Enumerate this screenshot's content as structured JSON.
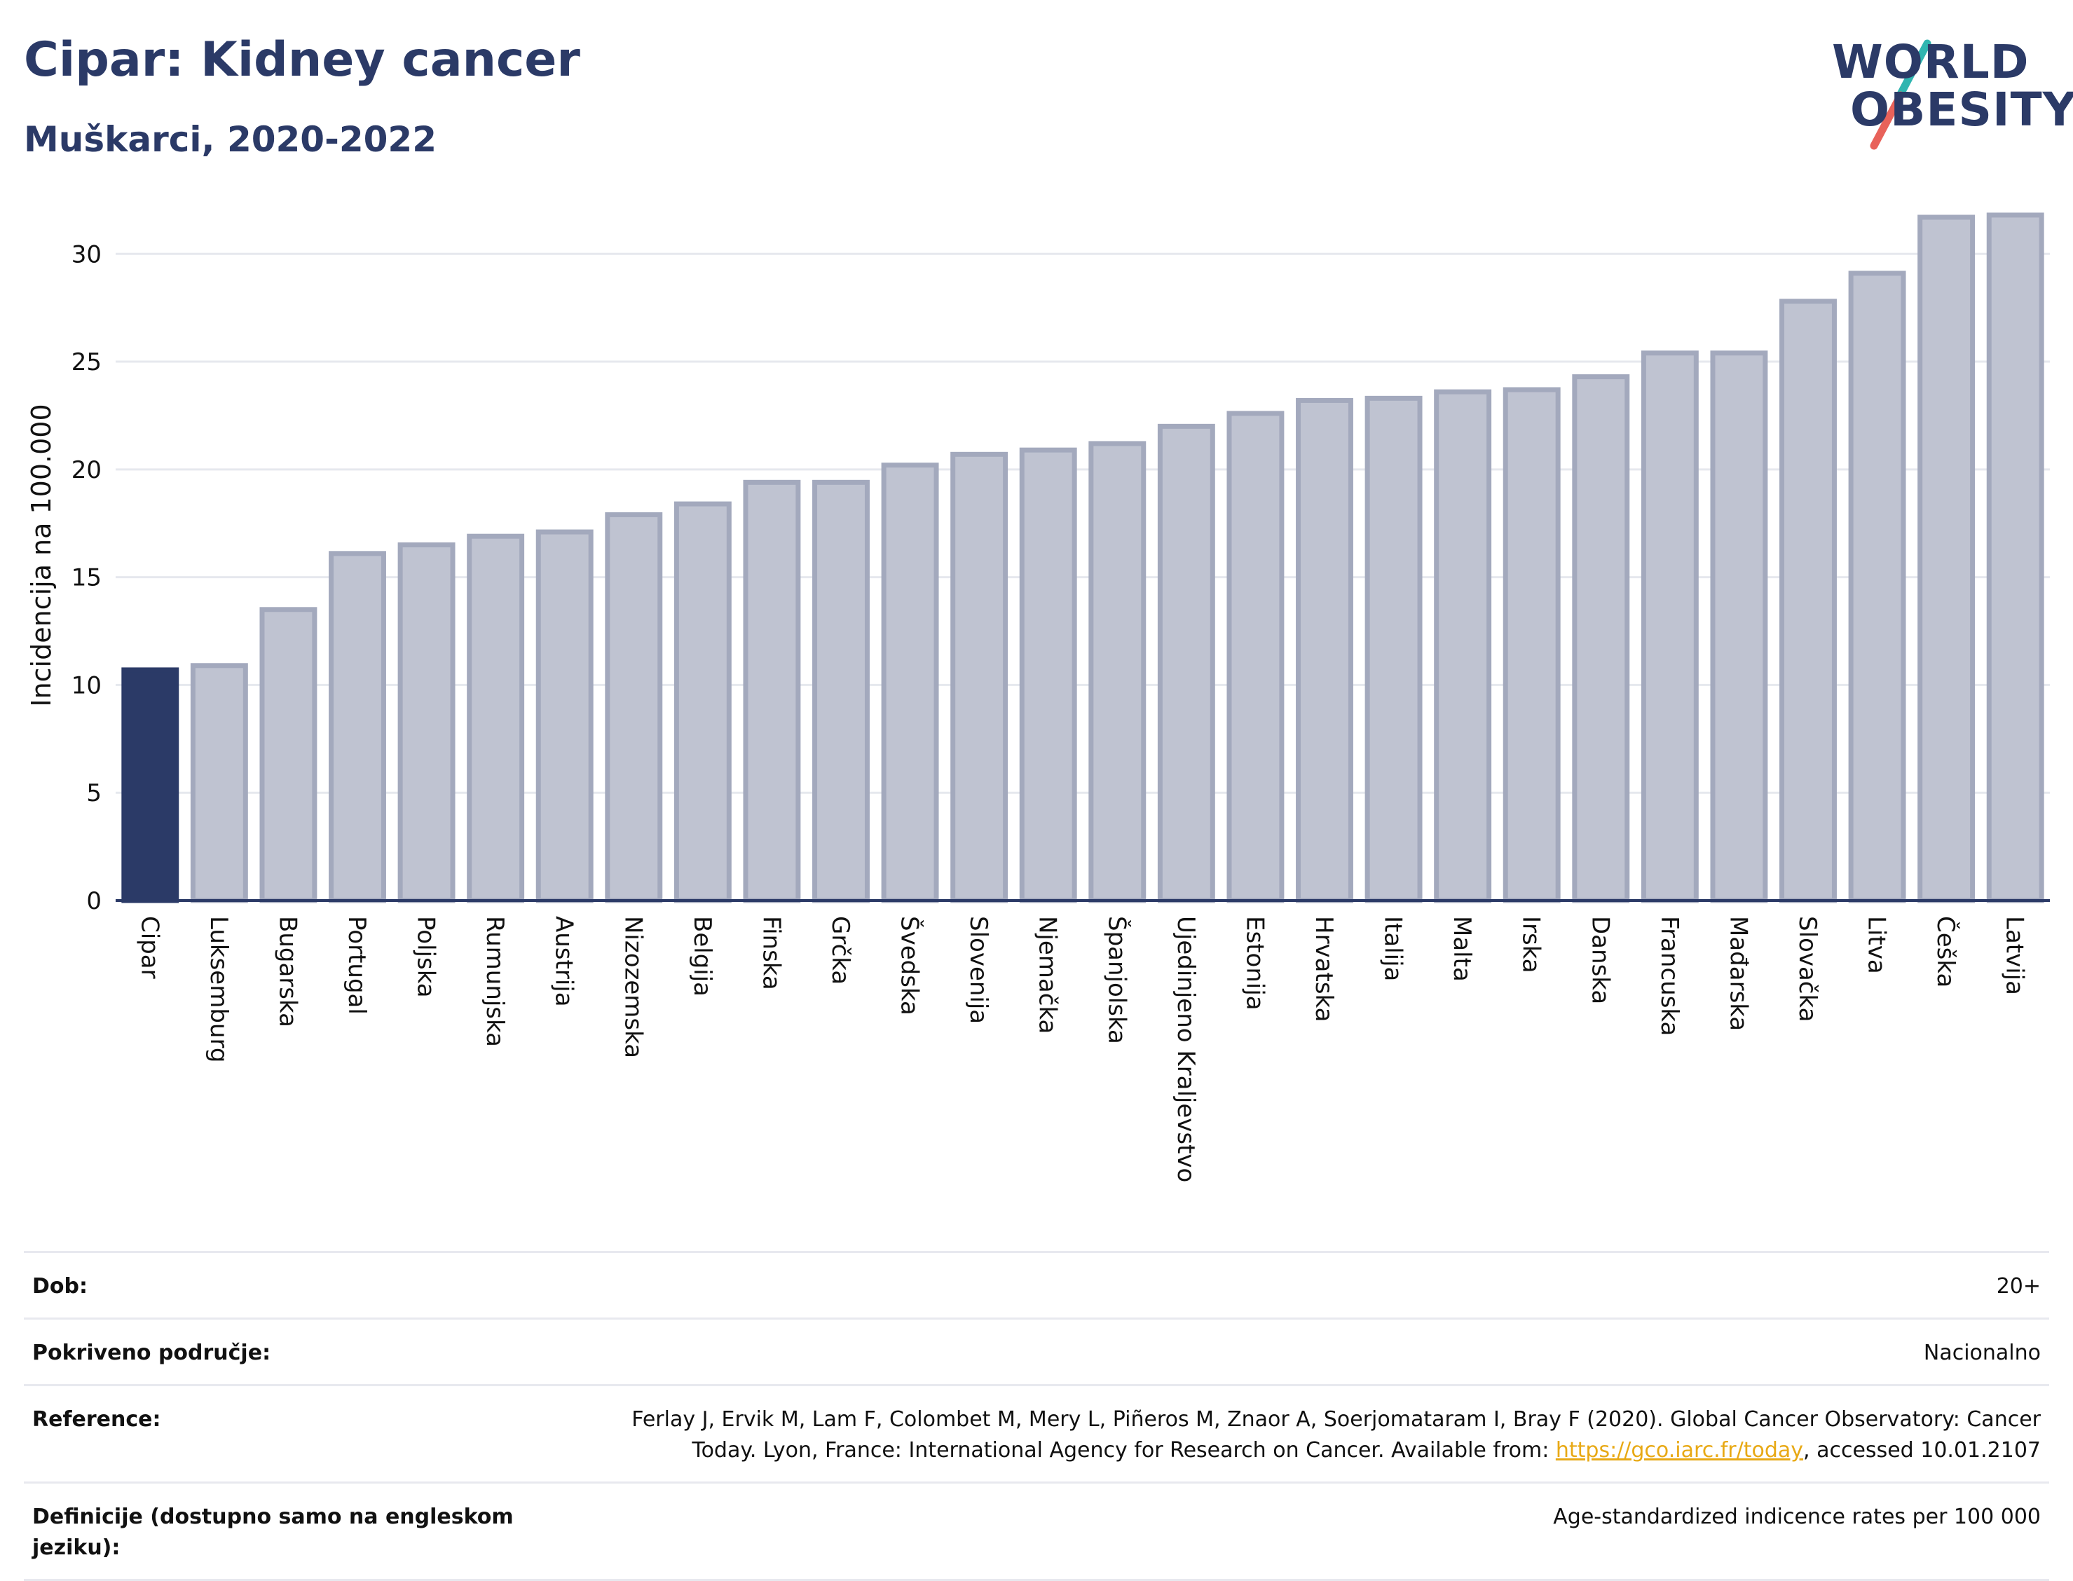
{
  "header": {
    "title": "Cipar: Kidney cancer",
    "subtitle": "Muškarci, 2020-2022"
  },
  "logo": {
    "line1": "WORLD",
    "line2": "OBESITY",
    "slash_colors": [
      "#2fb5b0",
      "#e8625a"
    ]
  },
  "colors": {
    "highlight_bar": "#2b3a67",
    "other_bar": "#bfc3d1",
    "bar_border": "#a3a9bd",
    "grid": "#e6e8ee",
    "axis": "#2b3a67"
  },
  "chart_data": {
    "type": "bar",
    "title": "",
    "xlabel": "",
    "ylabel": "Incidencija na 100.000",
    "ylim": [
      0,
      33
    ],
    "yticks": [
      0,
      5,
      10,
      15,
      20,
      25,
      30
    ],
    "grid": true,
    "highlight": "Cipar",
    "categories": [
      "Cipar",
      "Luksemburg",
      "Bugarska",
      "Portugal",
      "Poljska",
      "Rumunjska",
      "Austrija",
      "Nizozemska",
      "Belgija",
      "Finska",
      "Grčka",
      "Švedska",
      "Slovenija",
      "Njemačka",
      "Španjolska",
      "Ujedinjeno Kraljevstvo",
      "Estonija",
      "Hrvatska",
      "Italija",
      "Malta",
      "Irska",
      "Danska",
      "Francuska",
      "Mađarska",
      "Slovačka",
      "Litva",
      "Češka",
      "Latvija"
    ],
    "values": [
      10.7,
      10.9,
      13.5,
      16.1,
      16.5,
      16.9,
      17.1,
      17.9,
      18.4,
      19.4,
      19.4,
      20.2,
      20.7,
      20.9,
      21.2,
      22.0,
      22.6,
      23.2,
      23.3,
      23.6,
      23.7,
      24.3,
      25.4,
      25.4,
      27.8,
      29.1,
      31.7,
      31.8
    ]
  },
  "info": {
    "rows": [
      {
        "label": "Dob:",
        "value": "20+"
      },
      {
        "label": "Pokriveno područje:",
        "value": "Nacionalno"
      },
      {
        "label": "Reference:",
        "value_pre": "Ferlay J, Ervik M, Lam F, Colombet M, Mery L, Piñeros M, Znaor A, Soerjomataram I, Bray F (2020). Global Cancer Observatory: Cancer Today. Lyon, France: International Agency for Research on Cancer. Available from: ",
        "link": "https://gco.iarc.fr/today",
        "value_post": ", accessed 10.01.2107"
      },
      {
        "label": "Definicije (dostupno samo na engleskom jeziku):",
        "value": "Age-standardized indicence rates per 100 000"
      }
    ]
  }
}
